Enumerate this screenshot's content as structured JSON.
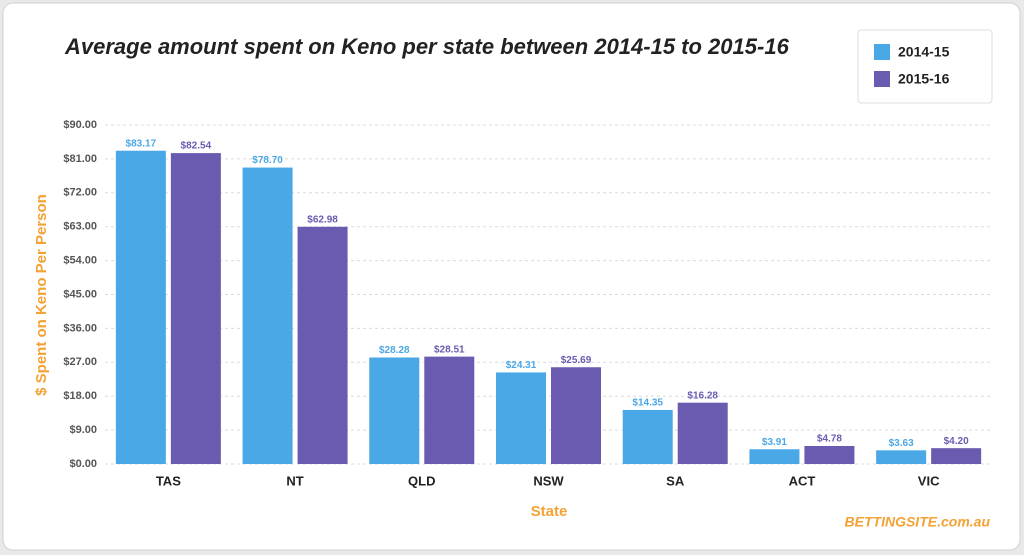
{
  "chart_data": {
    "type": "bar",
    "title": "Average amount spent on Keno per state between 2014-15 to 2015-16",
    "x_label": "State",
    "y_label": "$ Spent on Keno Per Person",
    "categories": [
      "TAS",
      "NT",
      "QLD",
      "NSW",
      "SA",
      "ACT",
      "VIC"
    ],
    "series": [
      {
        "name": "2014-15",
        "color": "#4aa8e6",
        "values": [
          83.17,
          78.7,
          28.28,
          24.31,
          14.35,
          3.91,
          3.63
        ],
        "value_labels": [
          "$83.17",
          "$78.70",
          "$28.28",
          "$24.31",
          "$14.35",
          "$3.91",
          "$3.63"
        ]
      },
      {
        "name": "2015-16",
        "color": "#6b5bb0",
        "values": [
          82.54,
          62.98,
          28.51,
          25.69,
          16.28,
          4.78,
          4.2
        ],
        "value_labels": [
          "$82.54",
          "$62.98",
          "$28.51",
          "$25.69",
          "$16.28",
          "$4.78",
          "$4.20"
        ]
      }
    ],
    "ylim": [
      0,
      90
    ],
    "yticks": [
      {
        "value": 0,
        "label": "$0.00"
      },
      {
        "value": 9,
        "label": "$9.00"
      },
      {
        "value": 18,
        "label": "$18.00"
      },
      {
        "value": 27,
        "label": "$27.00"
      },
      {
        "value": 36,
        "label": "$36.00"
      },
      {
        "value": 45,
        "label": "$45.00"
      },
      {
        "value": 54,
        "label": "$54.00"
      },
      {
        "value": 63,
        "label": "$63.00"
      },
      {
        "value": 72,
        "label": "$72.00"
      },
      {
        "value": 81,
        "label": "$81.00"
      },
      {
        "value": 90,
        "label": "$90.00"
      }
    ],
    "grid": true,
    "legend_position": "top-right",
    "logo": "BETTINGSITE.com.au"
  }
}
